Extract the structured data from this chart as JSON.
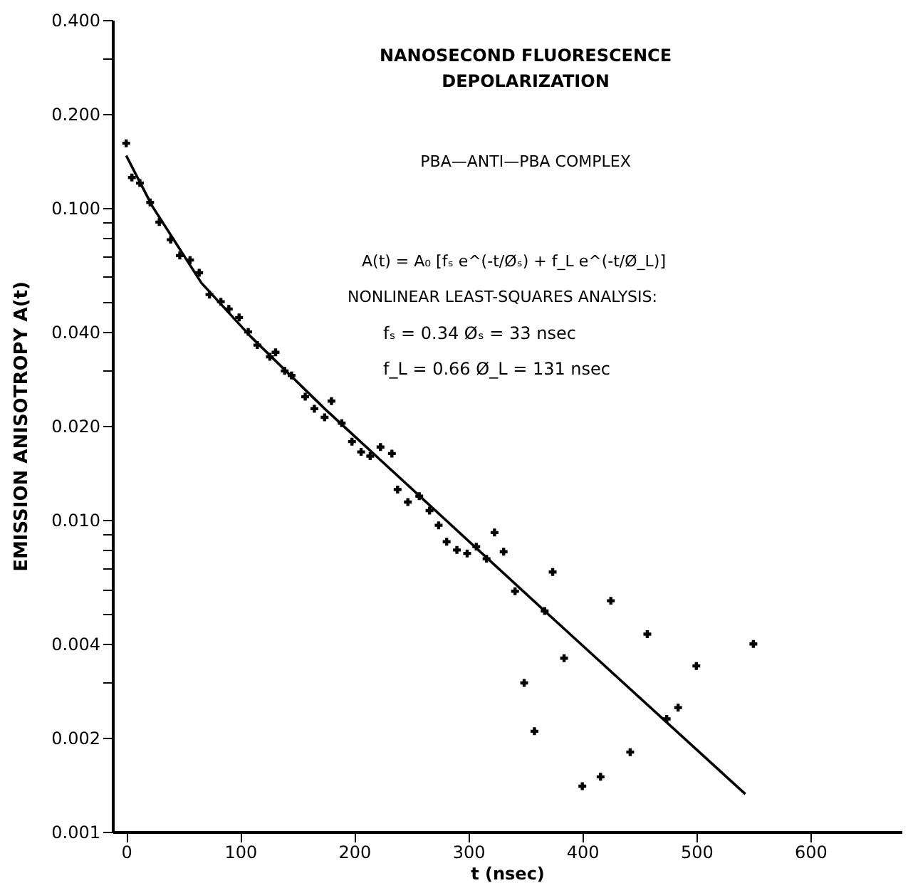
{
  "chart_data": {
    "type": "scatter",
    "title": "NANOSECOND FLUORESCENCE DEPOLARIZATION",
    "xlabel": "t (nsec)",
    "ylabel": "EMISSION ANISOTROPY   A(t)",
    "annotations": [
      "PBA—ANTI—PBA COMPLEX",
      "A(t) = A₀ [fₛ e^(-t/Øₛ) + f_L e^(-t/Ø_L)]",
      "NONLINEAR LEAST-SQUARES ANALYSIS:",
      "fₛ = 0.34     Øₛ = 33 nsec",
      "f_L = 0.66     Ø_L = 131 nsec"
    ],
    "log": "y",
    "grid": false,
    "marker": "cross",
    "xlim": [
      -12,
      680
    ],
    "xticks": [
      0,
      100,
      200,
      300,
      400,
      500,
      600
    ],
    "ylim": [
      0.001,
      0.4
    ],
    "yticks": [
      {
        "value": 0.001,
        "label": "0.001"
      },
      {
        "value": 0.002,
        "label": "0.002"
      },
      {
        "value": 0.003,
        "label": null
      },
      {
        "value": 0.004,
        "label": "0.004"
      },
      {
        "value": 0.005,
        "label": null
      },
      {
        "value": 0.006,
        "label": null
      },
      {
        "value": 0.007,
        "label": null
      },
      {
        "value": 0.008,
        "label": null
      },
      {
        "value": 0.009,
        "label": null
      },
      {
        "value": 0.01,
        "label": "0.010"
      },
      {
        "value": 0.02,
        "label": "0.020"
      },
      {
        "value": 0.03,
        "label": null
      },
      {
        "value": 0.04,
        "label": "0.040"
      },
      {
        "value": 0.05,
        "label": null
      },
      {
        "value": 0.06,
        "label": null
      },
      {
        "value": 0.07,
        "label": null
      },
      {
        "value": 0.08,
        "label": null
      },
      {
        "value": 0.09,
        "label": null
      },
      {
        "value": 0.1,
        "label": "0.100"
      },
      {
        "value": 0.2,
        "label": "0.200"
      },
      {
        "value": 0.3,
        "label": null
      },
      {
        "value": 0.4,
        "label": "0.400"
      }
    ],
    "series": [
      {
        "color": "#000000",
        "x": [
          0,
          5,
          12,
          21,
          29,
          39,
          47,
          56,
          64,
          73,
          83,
          90,
          99,
          107,
          115,
          126,
          131,
          139,
          145,
          157,
          165,
          174,
          180,
          189,
          198,
          206,
          214,
          223,
          233,
          238,
          247,
          257,
          266,
          274,
          281,
          290,
          299,
          307,
          316,
          323,
          331,
          341,
          349,
          358,
          367,
          374,
          384,
          400,
          416,
          425,
          442,
          457,
          474,
          484,
          500,
          550
        ],
        "values": [
          0.161,
          0.125,
          0.12,
          0.104,
          0.09,
          0.079,
          0.0703,
          0.068,
          0.0619,
          0.0527,
          0.05,
          0.0474,
          0.0445,
          0.04,
          0.0363,
          0.0333,
          0.0344,
          0.03,
          0.029,
          0.0248,
          0.0227,
          0.0213,
          0.024,
          0.0204,
          0.0178,
          0.0165,
          0.016,
          0.0171,
          0.0163,
          0.0125,
          0.0114,
          0.0119,
          0.0107,
          0.0096,
          0.0085,
          0.008,
          0.0078,
          0.0082,
          0.0075,
          0.0091,
          0.0079,
          0.0059,
          0.003,
          0.0021,
          0.0051,
          0.0068,
          0.0036,
          0.0014,
          0.0015,
          0.0055,
          0.0018,
          0.0043,
          0.0023,
          0.0025,
          0.0034,
          0.004
        ]
      },
      {
        "type": "line",
        "marker": "none",
        "line_style": "solid",
        "color": "#000000",
        "x": [
          0,
          23,
          66,
          109,
          174,
          367,
          543
        ],
        "values": [
          0.147,
          0.101,
          0.0574,
          0.0387,
          0.0227,
          0.0051,
          0.00132
        ]
      }
    ]
  }
}
